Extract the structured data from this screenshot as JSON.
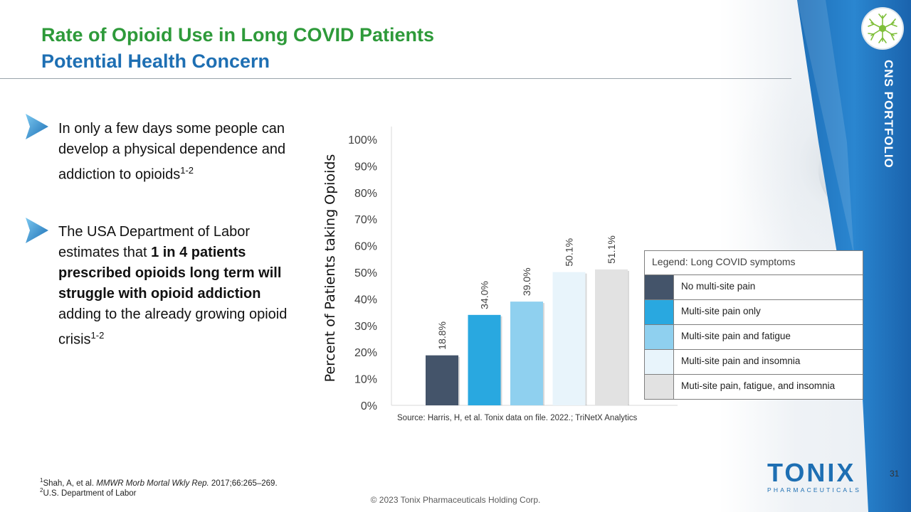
{
  "slide": {
    "title_line1": "Rate of Opioid Use in Long COVID Patients",
    "title_line2": "Potential Health Concern",
    "side_label": "CNS PORTFOLIO",
    "page_number": "31",
    "copyright": "© 2023 Tonix Pharmaceuticals Holding Corp.",
    "logo_main": "TONIX",
    "logo_sub": "PHARMACEUTICALS"
  },
  "bullets": [
    {
      "text": "In only a few days some people can develop a physical dependence and addiction to opioids",
      "sup": "1-2"
    },
    {
      "text_before": "The USA Department of Labor estimates that ",
      "bold": "1 in 4 patients prescribed opioids long term will struggle with opioid addiction",
      "text_after": " adding to the already growing opioid crisis",
      "sup": "1-2"
    }
  ],
  "chart_data": {
    "type": "bar",
    "title": "",
    "xlabel": "",
    "ylabel": "Percent of Patients taking Opioids",
    "ylim": [
      0,
      100
    ],
    "yticks": [
      "0%",
      "10%",
      "20%",
      "30%",
      "40%",
      "50%",
      "60%",
      "70%",
      "80%",
      "90%",
      "100%"
    ],
    "categories": [
      "No multi-site pain",
      "Multi-site pain only",
      "Multi-site pain and fatigue",
      "Multi-site pain and insomnia",
      "Muti-site pain, fatigue, and insomnia"
    ],
    "values": [
      18.8,
      34.0,
      39.0,
      50.1,
      51.1
    ],
    "data_labels": [
      "18.8%",
      "34.0%",
      "39.0%",
      "50.1%",
      "51.1%"
    ],
    "colors": [
      "#44546a",
      "#29a8e0",
      "#8fd0ef",
      "#e8f4fb",
      "#e2e2e2"
    ],
    "legend_title": "Legend: Long COVID symptoms",
    "legend_position": "right",
    "grid": false
  },
  "source": "Source: Harris, H, et al. Tonix data on file. 2022.; TriNetX Analytics",
  "footnotes": [
    {
      "num": "1",
      "text_before": "Shah, A, et al. ",
      "italic": "MMWR Morb Mortal Wkly Rep.",
      "text_after": " 2017;66:265–269."
    },
    {
      "num": "2",
      "text": "U.S. Department of Labor"
    }
  ]
}
